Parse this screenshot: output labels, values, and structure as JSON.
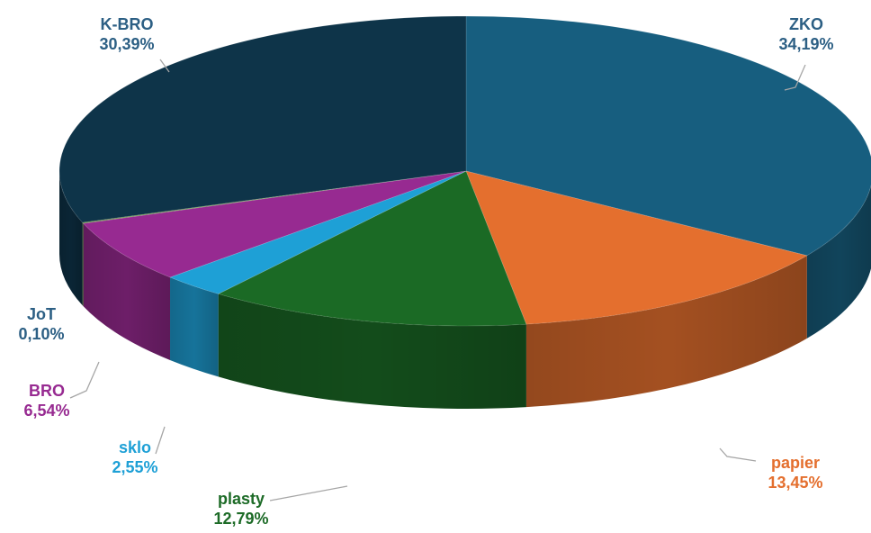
{
  "chart_data": {
    "type": "pie",
    "style": "3d-exploded-none",
    "start": "12-o'clock",
    "direction": "clockwise",
    "slices": [
      {
        "name": "ZKO",
        "value": 34.19,
        "value_label": "34,19%",
        "color": "#175e7f",
        "label_color": "#2c5f84"
      },
      {
        "name": "papier",
        "value": 13.45,
        "value_label": "13,45%",
        "color": "#e46f2e",
        "label_color": "#e46f2e"
      },
      {
        "name": "plasty",
        "value": 12.79,
        "value_label": "12,79%",
        "color": "#1b6a25",
        "label_color": "#1d6b27"
      },
      {
        "name": "sklo",
        "value": 2.55,
        "value_label": "2,55%",
        "color": "#1ea0d6",
        "label_color": "#1ea0d6"
      },
      {
        "name": "BRO",
        "value": 6.54,
        "value_label": "6,54%",
        "color": "#972a91",
        "label_color": "#972a91"
      },
      {
        "name": "JoT",
        "value": 0.1,
        "value_label": "0,10%",
        "color": "#5e8f3a",
        "label_color": "#2c5f84"
      },
      {
        "name": "K-BRO",
        "value": 30.39,
        "value_label": "30,39%",
        "color": "#0e3449",
        "label_color": "#2c5f84"
      }
    ]
  }
}
